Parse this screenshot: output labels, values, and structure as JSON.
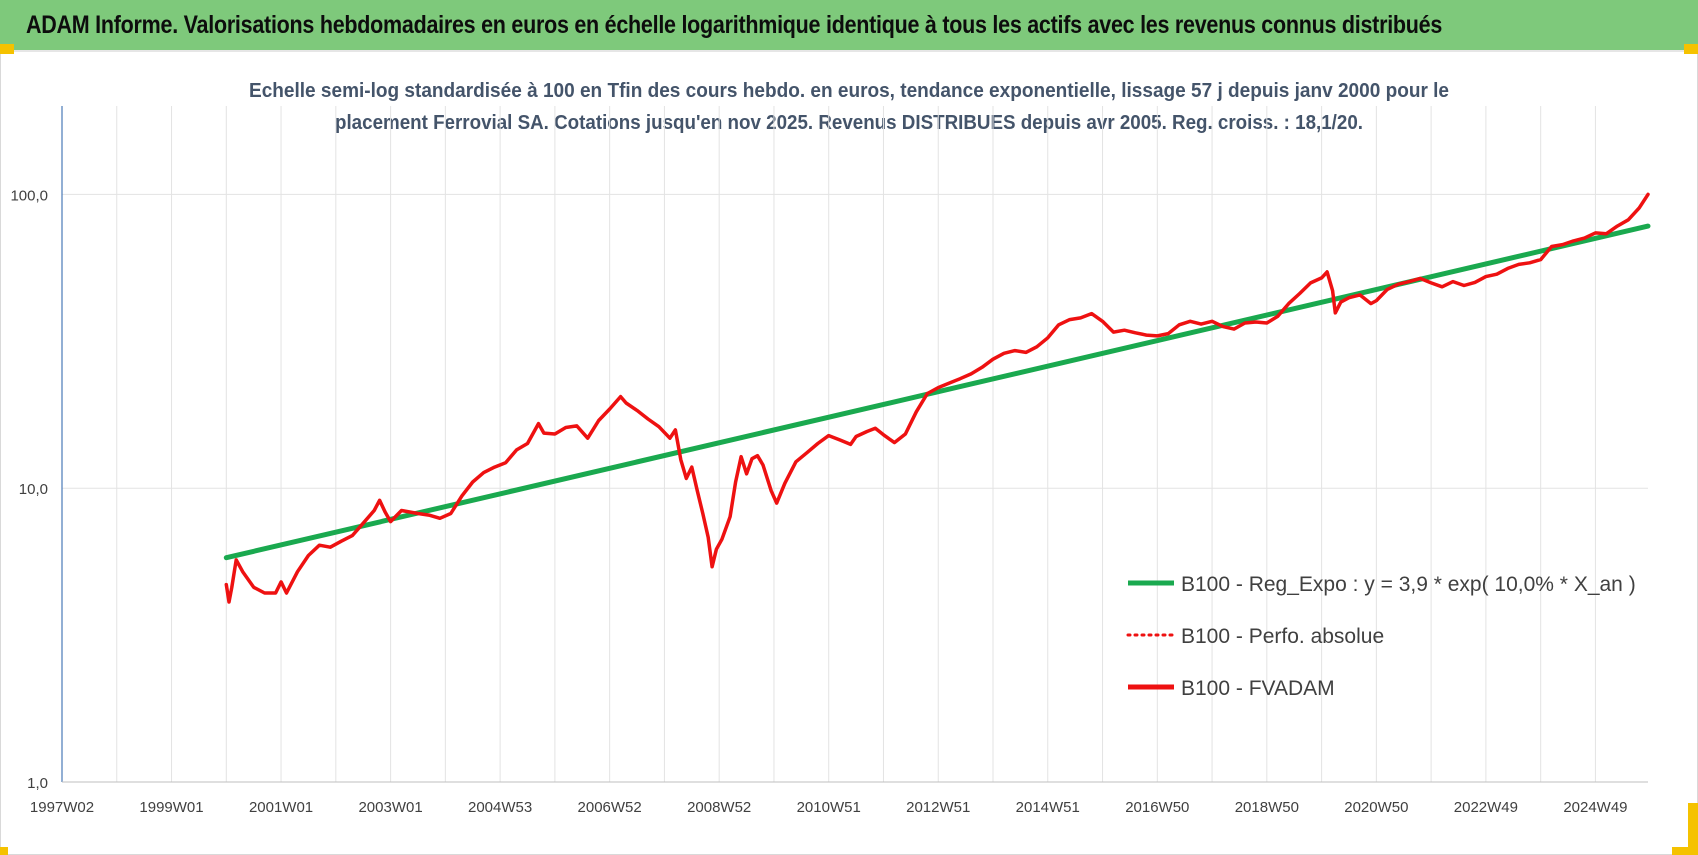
{
  "banner": {
    "title": "ADAM Informe. Valorisations hebdomadaires en euros en échelle logarithmique identique à tous les actifs avec les revenus connus distribués"
  },
  "colors": {
    "banner_bg": "#7ec97b",
    "trend": "#1aa94f",
    "fvadam": "#ee1111",
    "perfo": "#ee1111",
    "title_text": "#44546a",
    "grid": "#e3e3e3",
    "axis": "#4a7ab8"
  },
  "chart_data": {
    "type": "line",
    "title_lines": [
      "Echelle semi-log standardisée à 100 en Tfin des cours hebdo. en euros, tendance exponentielle, lissage 57 j depuis janv 2000 pour le",
      "placement Ferrovial SA. Cotations jusqu'en nov 2025. Revenus DISTRIBUES depuis avr 2005. Reg. croiss. : 18,1/20."
    ],
    "y_scale": "log",
    "ylim": [
      1,
      200
    ],
    "y_ticks": [
      {
        "value": 1,
        "label": "1,0"
      },
      {
        "value": 10,
        "label": "10,0"
      },
      {
        "value": 100,
        "label": "100,0"
      }
    ],
    "xlim": [
      1997.0,
      2025.96
    ],
    "x_ticks": [
      {
        "value": 1997.0,
        "label": "1997W02"
      },
      {
        "value": 1999.0,
        "label": "1999W01"
      },
      {
        "value": 2001.0,
        "label": "2001W01"
      },
      {
        "value": 2003.0,
        "label": "2003W01"
      },
      {
        "value": 2005.0,
        "label": "2004W53"
      },
      {
        "value": 2007.0,
        "label": "2006W52"
      },
      {
        "value": 2009.0,
        "label": "2008W52"
      },
      {
        "value": 2011.0,
        "label": "2010W51"
      },
      {
        "value": 2013.0,
        "label": "2012W51"
      },
      {
        "value": 2015.0,
        "label": "2014W51"
      },
      {
        "value": 2017.0,
        "label": "2016W50"
      },
      {
        "value": 2019.0,
        "label": "2018W50"
      },
      {
        "value": 2021.0,
        "label": "2020W50"
      },
      {
        "value": 2023.0,
        "label": "2022W49"
      },
      {
        "value": 2025.0,
        "label": "2024W49"
      }
    ],
    "legend_position": "right",
    "series": [
      {
        "name": "B100 - Reg_Expo : y = 3,9 * exp( 10,0% *  X_an )",
        "style": "solid-thick",
        "points": [
          [
            2000.0,
            5.8
          ],
          [
            2025.96,
            78.0
          ]
        ]
      },
      {
        "name": "B100 - Perfo. absolue",
        "style": "dotted",
        "points": []
      },
      {
        "name": "B100 - FVADAM",
        "style": "solid",
        "points": [
          [
            2000.0,
            4.7
          ],
          [
            2000.05,
            4.1
          ],
          [
            2000.1,
            4.6
          ],
          [
            2000.18,
            5.7
          ],
          [
            2000.3,
            5.2
          ],
          [
            2000.5,
            4.6
          ],
          [
            2000.7,
            4.4
          ],
          [
            2000.9,
            4.4
          ],
          [
            2001.0,
            4.8
          ],
          [
            2001.1,
            4.4
          ],
          [
            2001.3,
            5.2
          ],
          [
            2001.5,
            5.9
          ],
          [
            2001.7,
            6.4
          ],
          [
            2001.9,
            6.3
          ],
          [
            2002.1,
            6.6
          ],
          [
            2002.3,
            6.9
          ],
          [
            2002.5,
            7.6
          ],
          [
            2002.7,
            8.4
          ],
          [
            2002.8,
            9.1
          ],
          [
            2002.9,
            8.3
          ],
          [
            2003.0,
            7.7
          ],
          [
            2003.2,
            8.4
          ],
          [
            2003.5,
            8.2
          ],
          [
            2003.7,
            8.1
          ],
          [
            2003.9,
            7.9
          ],
          [
            2004.1,
            8.2
          ],
          [
            2004.3,
            9.4
          ],
          [
            2004.5,
            10.5
          ],
          [
            2004.7,
            11.3
          ],
          [
            2004.9,
            11.8
          ],
          [
            2005.1,
            12.2
          ],
          [
            2005.3,
            13.5
          ],
          [
            2005.5,
            14.2
          ],
          [
            2005.7,
            16.6
          ],
          [
            2005.8,
            15.4
          ],
          [
            2006.0,
            15.3
          ],
          [
            2006.2,
            16.1
          ],
          [
            2006.4,
            16.3
          ],
          [
            2006.6,
            14.8
          ],
          [
            2006.8,
            17.0
          ],
          [
            2007.0,
            18.6
          ],
          [
            2007.2,
            20.5
          ],
          [
            2007.3,
            19.5
          ],
          [
            2007.5,
            18.4
          ],
          [
            2007.7,
            17.2
          ],
          [
            2007.9,
            16.2
          ],
          [
            2008.1,
            14.8
          ],
          [
            2008.2,
            15.8
          ],
          [
            2008.3,
            12.5
          ],
          [
            2008.4,
            10.8
          ],
          [
            2008.5,
            11.8
          ],
          [
            2008.6,
            9.8
          ],
          [
            2008.7,
            8.2
          ],
          [
            2008.8,
            6.8
          ],
          [
            2008.87,
            5.4
          ],
          [
            2008.95,
            6.2
          ],
          [
            2009.05,
            6.7
          ],
          [
            2009.2,
            8.0
          ],
          [
            2009.3,
            10.5
          ],
          [
            2009.4,
            12.8
          ],
          [
            2009.5,
            11.2
          ],
          [
            2009.6,
            12.6
          ],
          [
            2009.7,
            12.9
          ],
          [
            2009.8,
            12.0
          ],
          [
            2009.95,
            9.8
          ],
          [
            2010.05,
            8.9
          ],
          [
            2010.2,
            10.4
          ],
          [
            2010.4,
            12.3
          ],
          [
            2010.6,
            13.2
          ],
          [
            2010.8,
            14.2
          ],
          [
            2011.0,
            15.1
          ],
          [
            2011.2,
            14.6
          ],
          [
            2011.4,
            14.1
          ],
          [
            2011.5,
            15.0
          ],
          [
            2011.7,
            15.6
          ],
          [
            2011.85,
            16.0
          ],
          [
            2012.0,
            15.2
          ],
          [
            2012.2,
            14.3
          ],
          [
            2012.4,
            15.3
          ],
          [
            2012.6,
            18.2
          ],
          [
            2012.8,
            21.0
          ],
          [
            2013.0,
            22.0
          ],
          [
            2013.2,
            22.8
          ],
          [
            2013.4,
            23.6
          ],
          [
            2013.6,
            24.5
          ],
          [
            2013.8,
            25.8
          ],
          [
            2014.0,
            27.5
          ],
          [
            2014.2,
            28.8
          ],
          [
            2014.4,
            29.4
          ],
          [
            2014.6,
            29.0
          ],
          [
            2014.8,
            30.3
          ],
          [
            2015.0,
            32.5
          ],
          [
            2015.2,
            36.0
          ],
          [
            2015.4,
            37.5
          ],
          [
            2015.6,
            38.0
          ],
          [
            2015.8,
            39.3
          ],
          [
            2016.0,
            37.0
          ],
          [
            2016.2,
            34.0
          ],
          [
            2016.4,
            34.5
          ],
          [
            2016.6,
            33.8
          ],
          [
            2016.8,
            33.2
          ],
          [
            2017.0,
            33.0
          ],
          [
            2017.2,
            33.6
          ],
          [
            2017.4,
            36.0
          ],
          [
            2017.6,
            37.0
          ],
          [
            2017.8,
            36.2
          ],
          [
            2018.0,
            37.0
          ],
          [
            2018.2,
            35.5
          ],
          [
            2018.4,
            34.8
          ],
          [
            2018.6,
            36.5
          ],
          [
            2018.8,
            36.8
          ],
          [
            2019.0,
            36.5
          ],
          [
            2019.2,
            38.5
          ],
          [
            2019.4,
            42.5
          ],
          [
            2019.6,
            46.0
          ],
          [
            2019.8,
            50.0
          ],
          [
            2020.0,
            52.0
          ],
          [
            2020.1,
            54.5
          ],
          [
            2020.2,
            47.0
          ],
          [
            2020.25,
            39.5
          ],
          [
            2020.35,
            43.0
          ],
          [
            2020.5,
            44.5
          ],
          [
            2020.7,
            45.5
          ],
          [
            2020.9,
            42.5
          ],
          [
            2021.0,
            43.5
          ],
          [
            2021.2,
            47.5
          ],
          [
            2021.4,
            49.5
          ],
          [
            2021.6,
            50.5
          ],
          [
            2021.8,
            51.8
          ],
          [
            2022.0,
            50.0
          ],
          [
            2022.2,
            48.5
          ],
          [
            2022.4,
            50.5
          ],
          [
            2022.6,
            49.0
          ],
          [
            2022.8,
            50.2
          ],
          [
            2023.0,
            52.5
          ],
          [
            2023.2,
            53.5
          ],
          [
            2023.4,
            56.0
          ],
          [
            2023.6,
            57.8
          ],
          [
            2023.8,
            58.5
          ],
          [
            2024.0,
            60.0
          ],
          [
            2024.2,
            66.5
          ],
          [
            2024.4,
            67.5
          ],
          [
            2024.6,
            69.5
          ],
          [
            2024.8,
            71.0
          ],
          [
            2025.0,
            74.0
          ],
          [
            2025.2,
            73.5
          ],
          [
            2025.4,
            78.0
          ],
          [
            2025.6,
            82.0
          ],
          [
            2025.8,
            90.0
          ],
          [
            2025.96,
            100.0
          ]
        ]
      }
    ]
  }
}
